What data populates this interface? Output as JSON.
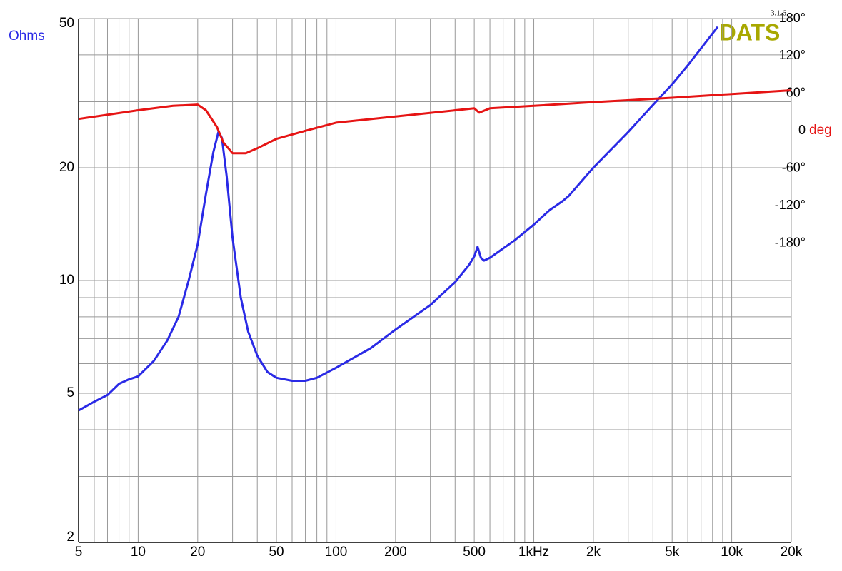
{
  "chart_data": {
    "type": "line",
    "ylabel": "Ohms",
    "y2label": "deg",
    "brand": "DATS",
    "version": "3.1.6",
    "xlog": true,
    "ylog": true,
    "grid": true,
    "xlim": [
      5,
      20000
    ],
    "xticks": [
      5,
      10,
      20,
      50,
      100,
      200,
      500,
      {
        "value": 1000,
        "label": "1kHz"
      },
      {
        "value": 2000,
        "label": "2k"
      },
      {
        "value": 5000,
        "label": "5k"
      },
      {
        "value": 10000,
        "label": "10k"
      },
      {
        "value": 20000,
        "label": "20k"
      }
    ],
    "xgrid": [
      6,
      7,
      8,
      9,
      30,
      40,
      60,
      70,
      80,
      90,
      300,
      400,
      600,
      700,
      800,
      900,
      3000,
      4000,
      6000,
      7000,
      8000,
      9000
    ],
    "ylim": [
      2,
      50
    ],
    "yticks": [
      2,
      5,
      10,
      20,
      50
    ],
    "ygrid": [
      3,
      4,
      6,
      7,
      8,
      9,
      30,
      40
    ],
    "y2lim": [
      -660,
      180
    ],
    "y2ticks": [
      {
        "value": 180,
        "label": "180°"
      },
      {
        "value": 120,
        "label": "120°"
      },
      {
        "value": 60,
        "label": "60°"
      },
      0,
      {
        "value": -60,
        "label": "-60°"
      },
      {
        "value": -120,
        "label": "-120°"
      },
      {
        "value": -180,
        "label": "-180°"
      }
    ],
    "series": [
      {
        "color": "#2a2ae6",
        "x": [
          5,
          6,
          7,
          8,
          9,
          10,
          12,
          14,
          16,
          18,
          20,
          22,
          24,
          25.5,
          26.5,
          28,
          30,
          33,
          36,
          40,
          45,
          50,
          60,
          70,
          80,
          100,
          150,
          200,
          300,
          400,
          470,
          500,
          520,
          540,
          560,
          600,
          800,
          1000,
          1200,
          1400,
          1500,
          2000,
          3000,
          4000,
          5000,
          6000,
          8000,
          8500
        ],
        "values": [
          4.5,
          4.75,
          4.95,
          5.3,
          5.45,
          5.55,
          6.1,
          6.9,
          8.0,
          10.0,
          12.5,
          17,
          22,
          25,
          24,
          19,
          13,
          9,
          7.3,
          6.3,
          5.7,
          5.5,
          5.4,
          5.4,
          5.5,
          5.85,
          6.6,
          7.4,
          8.6,
          9.9,
          11,
          11.6,
          12.3,
          11.5,
          11.3,
          11.5,
          12.8,
          14.1,
          15.4,
          16.3,
          16.8,
          20,
          24.9,
          29.4,
          33.4,
          37.5,
          45.6,
          47.5
        ]
      },
      {
        "color": "#e61414",
        "axis": "y2",
        "x": [
          5,
          10,
          15,
          20,
          22,
          25,
          27,
          30,
          35,
          40,
          50,
          70,
          100,
          200,
          500,
          530,
          600,
          1000,
          2000,
          5000,
          10000,
          20000
        ],
        "values": [
          19,
          33,
          40,
          42,
          33,
          6,
          -19,
          -36,
          -36,
          -28,
          -13,
          0,
          13,
          23,
          36,
          29,
          36,
          40,
          46,
          53,
          59,
          65
        ]
      }
    ]
  }
}
